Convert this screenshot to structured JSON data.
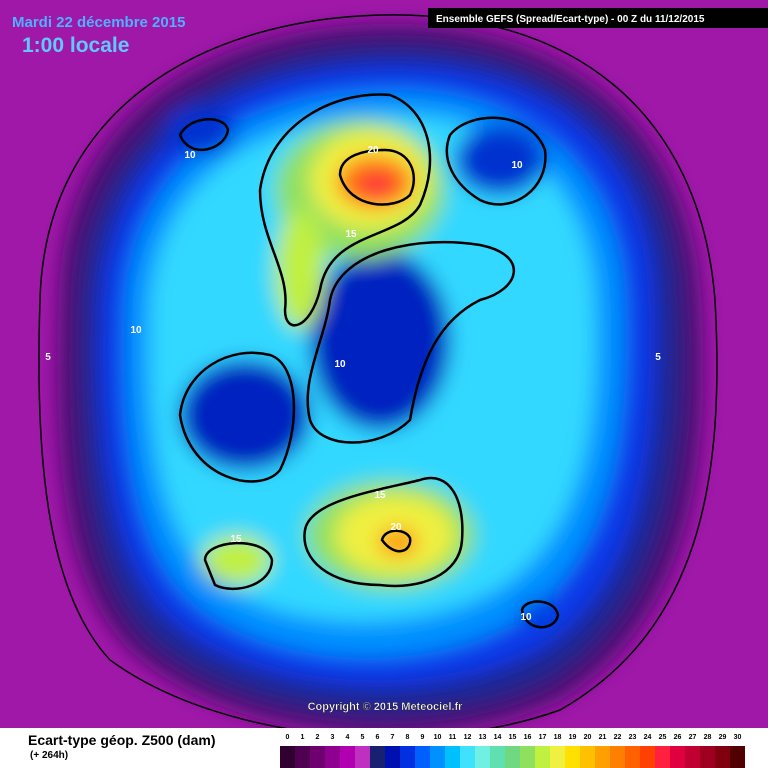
{
  "header": {
    "date": "Mardi 22 décembre 2015",
    "time": "1:00 locale",
    "run": "Ensemble GEFS  (Spread/Ecart-type) - 00 Z du 11/12/2015"
  },
  "map": {
    "contour_labels": [
      "10",
      "20",
      "15",
      "10",
      "10",
      "5",
      "10",
      "5",
      "15",
      "20",
      "15",
      "10"
    ],
    "copyright": "Copyright © 2015 Meteociel.fr"
  },
  "legend": {
    "title": "Ecart-type géop. Z500 (dam)",
    "lead": "(+ 264h)",
    "labels": [
      "0",
      "1",
      "2",
      "3",
      "4",
      "5",
      "6",
      "7",
      "8",
      "9",
      "10",
      "11",
      "12",
      "13",
      "14",
      "15",
      "16",
      "17",
      "18",
      "19",
      "20",
      "21",
      "22",
      "23",
      "24",
      "25",
      "26",
      "27",
      "28",
      "29",
      "30"
    ],
    "colors": [
      "#300030",
      "#500050",
      "#700070",
      "#900090",
      "#b000b0",
      "#c030c0",
      "#182070",
      "#0010b0",
      "#0030e0",
      "#0060ff",
      "#0090ff",
      "#00c0ff",
      "#40e0ff",
      "#70f0e0",
      "#60e0b0",
      "#70d880",
      "#90e060",
      "#c0f040",
      "#f0f040",
      "#ffe000",
      "#ffc000",
      "#ffa000",
      "#ff8000",
      "#ff6000",
      "#ff4000",
      "#ff2040",
      "#e00040",
      "#c00030",
      "#a00020",
      "#800010",
      "#500000"
    ]
  }
}
